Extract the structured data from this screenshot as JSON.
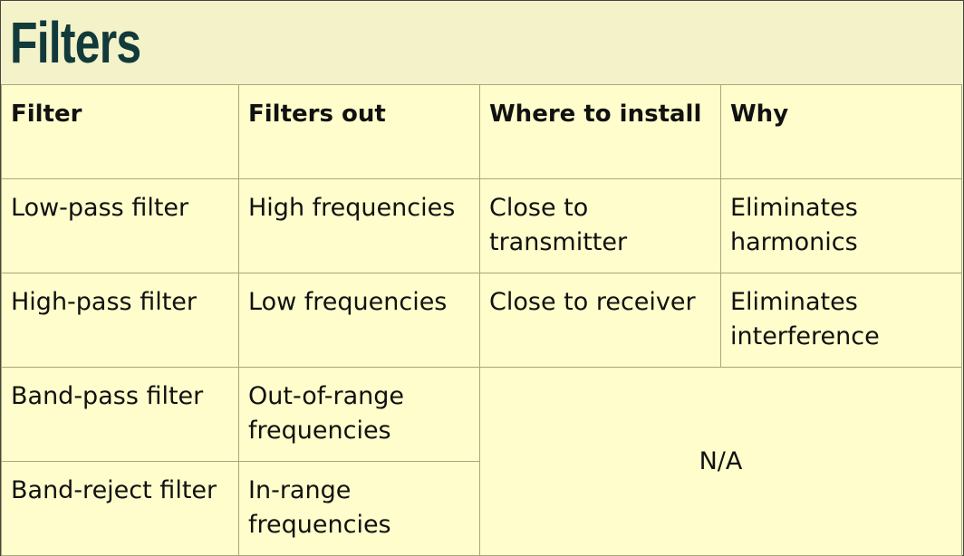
{
  "title": "Filters",
  "colors": {
    "title": "#123a3a",
    "title_bg": "#f3f2c9",
    "table_bg": "#fefdcb",
    "border": "#a9a77b"
  },
  "table": {
    "headers": [
      "Filter",
      "Filters out",
      "Where to install",
      "Why"
    ],
    "rows": [
      [
        "Low-pass filter",
        "High frequencies",
        "Close to transmitter",
        "Eliminates harmonics"
      ],
      [
        "High-pass filter",
        "Low frequencies",
        "Close to receiver",
        "Eliminates interference"
      ],
      [
        "Band-pass filter",
        "Out-of-range frequencies"
      ],
      [
        "Band-reject filter",
        "In-range frequencies"
      ]
    ],
    "merged_cell": "N/A"
  }
}
